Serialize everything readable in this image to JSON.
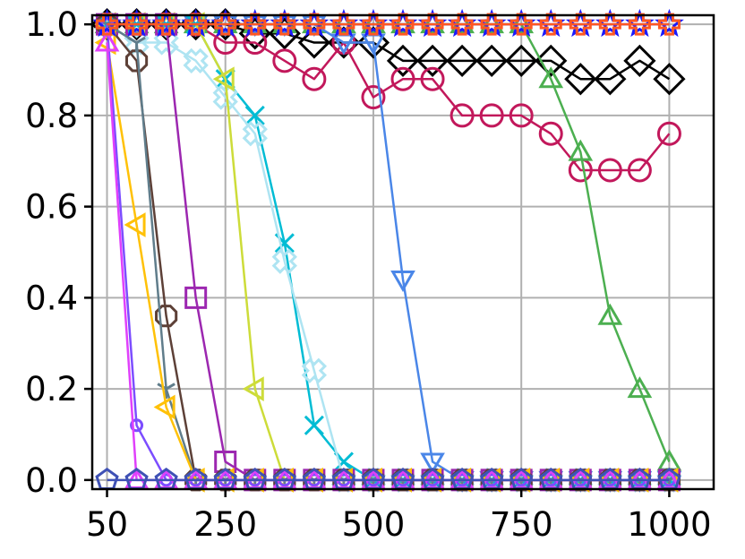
{
  "colors": {
    "background": "#ffffff",
    "grid": "#b0b0b0",
    "axis": "#000000"
  },
  "chart_data": {
    "type": "line",
    "title": "",
    "xlabel": "",
    "ylabel": "",
    "xlim": [
      25,
      1075
    ],
    "ylim": [
      -0.02,
      1.02
    ],
    "x": [
      50,
      100,
      150,
      200,
      250,
      300,
      350,
      400,
      450,
      500,
      550,
      600,
      650,
      700,
      750,
      800,
      850,
      900,
      950,
      1000
    ],
    "xticks": [
      50,
      250,
      500,
      750,
      1000
    ],
    "xtick_labels": [
      "50",
      "250",
      "500",
      "750",
      "1000"
    ],
    "yticks": [
      0,
      0.2,
      0.4,
      0.6,
      0.8,
      1.0
    ],
    "ytick_labels": [
      "0.0",
      "0.2",
      "0.4",
      "0.6",
      "0.8",
      "1.0"
    ],
    "grid": true,
    "legend": "none",
    "series": [
      {
        "color": "#000000",
        "marker": "diamond",
        "values": [
          1.0,
          1.0,
          1.0,
          1.0,
          1.0,
          0.98,
          0.98,
          0.96,
          0.96,
          0.96,
          0.92,
          0.92,
          0.92,
          0.92,
          0.92,
          0.92,
          0.88,
          0.88,
          0.92,
          0.88
        ]
      },
      {
        "color": "#c2185b",
        "marker": "circle",
        "values": [
          1.0,
          1.0,
          1.0,
          1.0,
          0.96,
          0.96,
          0.92,
          0.88,
          0.96,
          0.84,
          0.88,
          0.88,
          0.8,
          0.8,
          0.8,
          0.76,
          0.68,
          0.68,
          0.68,
          0.76
        ]
      },
      {
        "color": "#4caf50",
        "marker": "triangle-up",
        "values": [
          1.0,
          1.0,
          1.0,
          1.0,
          1.0,
          1.0,
          1.0,
          1.0,
          1.0,
          1.0,
          1.0,
          1.0,
          1.0,
          1.0,
          1.0,
          0.88,
          0.72,
          0.36,
          0.2,
          0.04
        ]
      },
      {
        "color": "#4a86e8",
        "marker": "triangle-down",
        "values": [
          1.0,
          1.0,
          1.0,
          1.0,
          1.0,
          1.0,
          1.0,
          1.0,
          0.96,
          0.96,
          0.44,
          0.04,
          0.0,
          0.0,
          0.0,
          0.0,
          0.0,
          0.0,
          0.0,
          0.0
        ]
      },
      {
        "color": "#00bcd4",
        "marker": "x",
        "values": [
          1.0,
          1.0,
          1.0,
          1.0,
          0.88,
          0.8,
          0.52,
          0.12,
          0.04,
          0.0,
          0.0,
          0.0,
          0.0,
          0.0,
          0.0,
          0.0,
          0.0,
          0.0,
          0.0,
          0.0
        ]
      },
      {
        "color": "#aee4f2",
        "marker": "plus-x",
        "values": [
          1.0,
          0.96,
          0.96,
          0.92,
          0.84,
          0.76,
          0.48,
          0.24,
          0.0,
          0.0,
          0.0,
          0.0,
          0.0,
          0.0,
          0.0,
          0.0,
          0.0,
          0.0,
          0.0,
          0.0
        ]
      },
      {
        "color": "#cddc39",
        "marker": "triangle-left",
        "values": [
          1.0,
          1.0,
          1.0,
          1.0,
          0.88,
          0.2,
          0.0,
          0.0,
          0.0,
          0.0,
          0.0,
          0.0,
          0.0,
          0.0,
          0.0,
          0.0,
          0.0,
          0.0,
          0.0,
          0.0
        ]
      },
      {
        "color": "#9c27b0",
        "marker": "square",
        "values": [
          1.0,
          1.0,
          1.0,
          0.4,
          0.04,
          0.0,
          0.0,
          0.0,
          0.0,
          0.0,
          0.0,
          0.0,
          0.0,
          0.0,
          0.0,
          0.0,
          0.0,
          0.0,
          0.0,
          0.0
        ]
      },
      {
        "color": "#5d4037",
        "marker": "octagon",
        "values": [
          1.0,
          0.92,
          0.36,
          0.0,
          0.0,
          0.0,
          0.0,
          0.0,
          0.0,
          0.0,
          0.0,
          0.0,
          0.0,
          0.0,
          0.0,
          0.0,
          0.0,
          0.0,
          0.0,
          0.0
        ]
      },
      {
        "color": "#607d8b",
        "marker": "tri-down",
        "values": [
          1.0,
          0.96,
          0.2,
          0.0,
          0.0,
          0.0,
          0.0,
          0.0,
          0.0,
          0.0,
          0.0,
          0.0,
          0.0,
          0.0,
          0.0,
          0.0,
          0.0,
          0.0,
          0.0,
          0.0
        ]
      },
      {
        "color": "#ffc107",
        "marker": "triangle-left",
        "values": [
          0.96,
          0.56,
          0.16,
          0.0,
          0.0,
          0.0,
          0.0,
          0.0,
          0.0,
          0.0,
          0.0,
          0.0,
          0.0,
          0.0,
          0.0,
          0.0,
          0.0,
          0.0,
          0.0,
          0.0
        ]
      },
      {
        "color": "#7c4dff",
        "marker": "small-circle",
        "values": [
          1.0,
          0.12,
          0.0,
          0.0,
          0.0,
          0.0,
          0.0,
          0.0,
          0.0,
          0.0,
          0.0,
          0.0,
          0.0,
          0.0,
          0.0,
          0.0,
          0.0,
          0.0,
          0.0,
          0.0
        ]
      },
      {
        "color": "#e040fb",
        "marker": "triangle-up",
        "values": [
          0.96,
          0.0,
          0.0,
          0.0,
          0.0,
          0.0,
          0.0,
          0.0,
          0.0,
          0.0,
          0.0,
          0.0,
          0.0,
          0.0,
          0.0,
          0.0,
          0.0,
          0.0,
          0.0,
          0.0
        ]
      },
      {
        "color": "#3f51b5",
        "marker": "pentagon",
        "values": [
          0.0,
          0.0,
          0.0,
          0.0,
          0.0,
          0.0,
          0.0,
          0.0,
          0.0,
          0.0,
          0.0,
          0.0,
          0.0,
          0.0,
          0.0,
          0.0,
          0.0,
          0.0,
          0.0,
          0.0
        ]
      },
      {
        "color": "#1a1aff",
        "marker": "star",
        "values": [
          1.0,
          1.0,
          1.0,
          1.0,
          1.0,
          1.0,
          1.0,
          1.0,
          1.0,
          1.0,
          1.0,
          1.0,
          1.0,
          1.0,
          1.0,
          1.0,
          1.0,
          1.0,
          1.0,
          1.0
        ]
      },
      {
        "color": "#ff5722",
        "marker": "plus",
        "values": [
          1.0,
          1.0,
          1.0,
          1.0,
          1.0,
          1.0,
          1.0,
          1.0,
          1.0,
          1.0,
          1.0,
          1.0,
          1.0,
          1.0,
          1.0,
          1.0,
          1.0,
          1.0,
          1.0,
          1.0
        ]
      }
    ]
  }
}
